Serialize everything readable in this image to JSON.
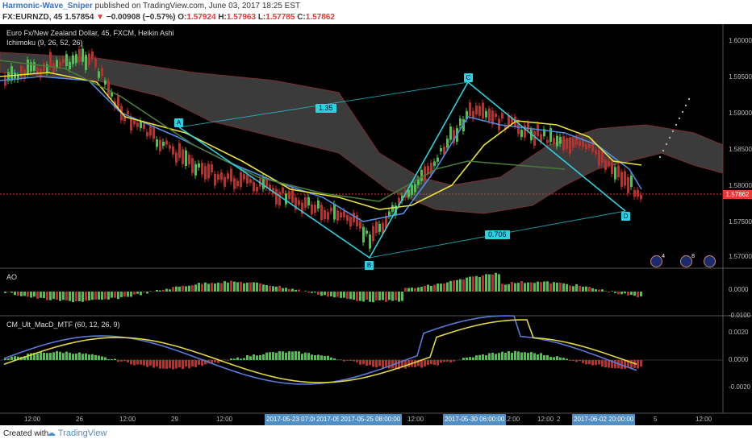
{
  "header": {
    "author": "Harmonic-Wave_Sniper",
    "published": "published on TradingView.com, June 03, 2017 18:25 EST",
    "symbol": "FX:EURNZD, 45",
    "last": "1.57854",
    "change": "−0.00908 (−0.57%)",
    "o_label": "O:",
    "o": "1.57924",
    "h_label": "H:",
    "h": "1.57963",
    "l_label": "L:",
    "l": "1.57785",
    "c_label": "C:",
    "c": "1.57862"
  },
  "legend": {
    "main": "Euro Fx/New Zealand Dollar, 45, FXCM, Heikin Ashi",
    "ichimoku": "Ichimoku (9, 26, 52, 26)",
    "ao": "AO",
    "macd": "CM_Ult_MacD_MTF (60, 12, 26, 9)"
  },
  "price_axis": [
    "1.60000",
    "1.59500",
    "1.59000",
    "1.58500",
    "1.58000",
    "1.57500",
    "1.57000"
  ],
  "current_price": "1.57862",
  "ao_axis": [
    "0.0000",
    "-0.0100"
  ],
  "macd_axis": [
    "0.0020",
    "0.0000",
    "-0.0020"
  ],
  "time_axis": [
    "12:00",
    "26",
    "12:00",
    "29",
    "12:00",
    "12:00",
    "12:00",
    "12:00",
    "2",
    "5",
    "12:00"
  ],
  "date_ticks": [
    "2017-05-23 07:00:00",
    "2017-05-2",
    "2017-05-25 08:00:00",
    "2017-05-30 06:00:00",
    "2017-06-02 20:00:00"
  ],
  "harmonic": {
    "points": [
      "A",
      "B",
      "C",
      "D"
    ],
    "ratio_ac": "1.35",
    "ratio_bd": "0.706"
  },
  "event_badges": [
    "4",
    "8",
    ""
  ],
  "footer": {
    "created": "Created with",
    "brand": "TradingView"
  },
  "colors": {
    "bull": "#35d435",
    "bear": "#e0201b",
    "harmonic": "#29d3df",
    "tenkan": "#4c8ee8",
    "kijun": "#e8e23a",
    "cloud": "#6b6b6b"
  }
}
